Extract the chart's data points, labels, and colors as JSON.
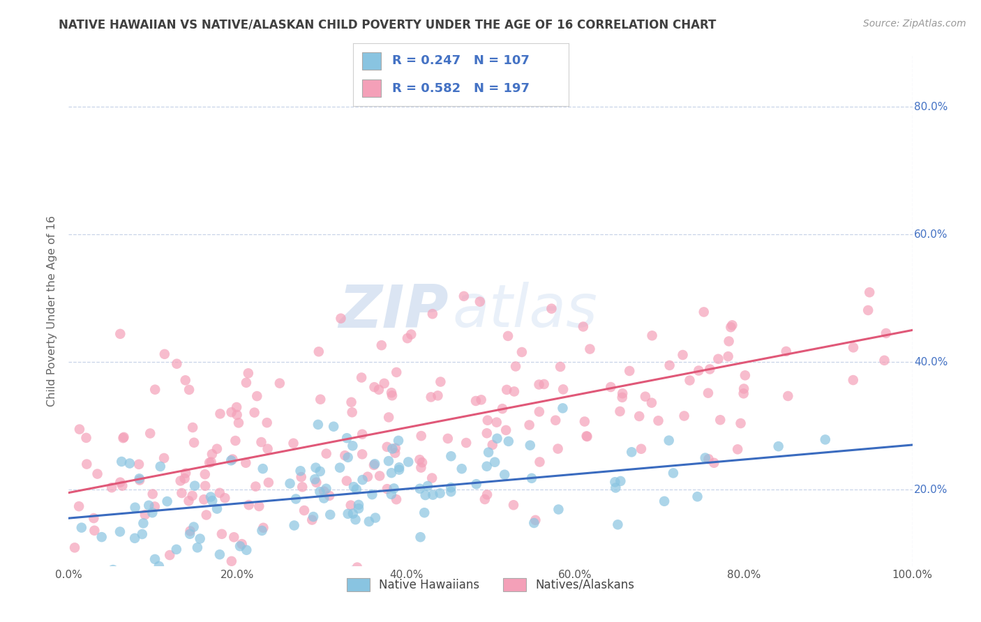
{
  "title": "NATIVE HAWAIIAN VS NATIVE/ALASKAN CHILD POVERTY UNDER THE AGE OF 16 CORRELATION CHART",
  "source": "Source: ZipAtlas.com",
  "ylabel": "Child Poverty Under the Age of 16",
  "xlim": [
    0.0,
    1.0
  ],
  "ylim": [
    0.08,
    0.88
  ],
  "xticks": [
    0.0,
    0.2,
    0.4,
    0.6,
    0.8,
    1.0
  ],
  "yticks": [
    0.2,
    0.4,
    0.6,
    0.8
  ],
  "xtick_labels": [
    "0.0%",
    "20.0%",
    "40.0%",
    "60.0%",
    "80.0%",
    "100.0%"
  ],
  "ytick_labels": [
    "20.0%",
    "40.0%",
    "60.0%",
    "80.0%"
  ],
  "blue_color": "#89c4e1",
  "pink_color": "#f4a0b8",
  "blue_line_color": "#3a6bbf",
  "pink_line_color": "#e05878",
  "R_blue": 0.247,
  "N_blue": 107,
  "R_pink": 0.582,
  "N_pink": 197,
  "legend_label_blue": "Native Hawaiians",
  "legend_label_pink": "Natives/Alaskans",
  "watermark_zip": "ZIP",
  "watermark_atlas": "atlas",
  "background_color": "#ffffff",
  "grid_color": "#c8d4e8",
  "title_color": "#404040",
  "ytick_color": "#4472c4",
  "xtick_color": "#555555",
  "legend_text_color": "#4472c4",
  "blue_line_intercept": 0.155,
  "blue_line_slope": 0.115,
  "pink_line_intercept": 0.195,
  "pink_line_slope": 0.255
}
